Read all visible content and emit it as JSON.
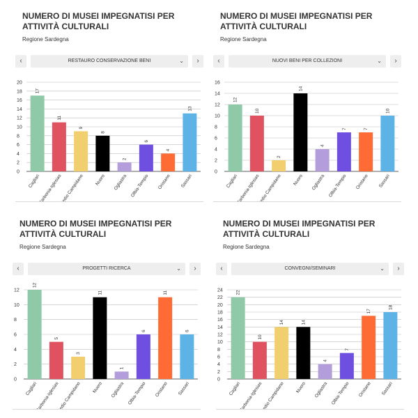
{
  "common": {
    "title": "NUMERO DI MUSEI IMPEGNATISI PER ATTIVITÀ CULTURALI",
    "subtitle": "Regione Sardegna",
    "prev_icon": "chevron-left-icon",
    "next_icon": "chevron-right-icon",
    "dropdown_icon": "chevron-down-icon"
  },
  "colors": [
    "#8fc9a8",
    "#e05260",
    "#f2cf6e",
    "#000000",
    "#b39ddb",
    "#6f4fe0",
    "#ff6b35",
    "#5db3e6"
  ],
  "chart_data": [
    {
      "type": "bar",
      "title": "NUMERO DI MUSEI IMPEGNATISI PER ATTIVITÀ CULTURALI",
      "subtitle": "Regione Sardegna",
      "selector": "RESTAURO CONSERVAZIONE BENI",
      "categories": [
        "Cagliari",
        "Carbonia-Iglesias",
        "Medio Campidano",
        "Nuoro",
        "Ogliastra",
        "Olbia-Tempio",
        "Oristano",
        "Sassari"
      ],
      "values": [
        17,
        11,
        9,
        8,
        2,
        6,
        4,
        13
      ],
      "ylim": [
        0,
        20
      ],
      "yticks": [
        0,
        2,
        4,
        6,
        8,
        10,
        12,
        14,
        16,
        18,
        20
      ],
      "grid": true,
      "legend": "none"
    },
    {
      "type": "bar",
      "title": "NUMERO DI MUSEI IMPEGNATISI PER ATTIVITÀ CULTURALI",
      "subtitle": "Regione Sardegna",
      "selector": "NUOVI BENI PER COLLEZIONI",
      "categories": [
        "Cagliari",
        "Carbonia-Iglesias",
        "Medio Campidano",
        "Nuoro",
        "Ogliastra",
        "Olbia-Tempio",
        "Oristano",
        "Sassari"
      ],
      "values": [
        12,
        10,
        2,
        14,
        4,
        7,
        7,
        10
      ],
      "ylim": [
        0,
        16
      ],
      "yticks": [
        0,
        2,
        4,
        6,
        8,
        10,
        12,
        14,
        16
      ],
      "grid": true,
      "legend": "none"
    },
    {
      "type": "bar",
      "title": "NUMERO DI MUSEI IMPEGNATISI PER ATTIVITÀ CULTURALI",
      "subtitle": "Regione Sardegna",
      "selector": "PROGETTI RICERCA",
      "categories": [
        "Cagliari",
        "Carbonia-Iglesias",
        "Medio Campidano",
        "Nuoro",
        "Ogliastra",
        "Olbia-Tempio",
        "Oristano",
        "Sassari"
      ],
      "values": [
        12,
        5,
        3,
        11,
        1,
        6,
        11,
        6
      ],
      "ylim": [
        0,
        12
      ],
      "yticks": [
        0,
        2,
        4,
        6,
        8,
        10,
        12
      ],
      "grid": true,
      "legend": "none"
    },
    {
      "type": "bar",
      "title": "NUMERO DI MUSEI IMPEGNATISI PER ATTIVITÀ CULTURALI",
      "subtitle": "Regione Sardegna",
      "selector": "CONVEGNI/SEMINARI",
      "categories": [
        "Cagliari",
        "Carbonia-Iglesias",
        "Medio Campidano",
        "Nuoro",
        "Ogliastra",
        "Olbia-Tempio",
        "Oristano",
        "Sassari"
      ],
      "values": [
        22,
        10,
        14,
        14,
        4,
        7,
        17,
        18
      ],
      "ylim": [
        0,
        24
      ],
      "yticks": [
        0,
        2,
        4,
        6,
        8,
        10,
        12,
        14,
        16,
        18,
        20,
        22,
        24
      ],
      "grid": true,
      "legend": "none"
    }
  ]
}
